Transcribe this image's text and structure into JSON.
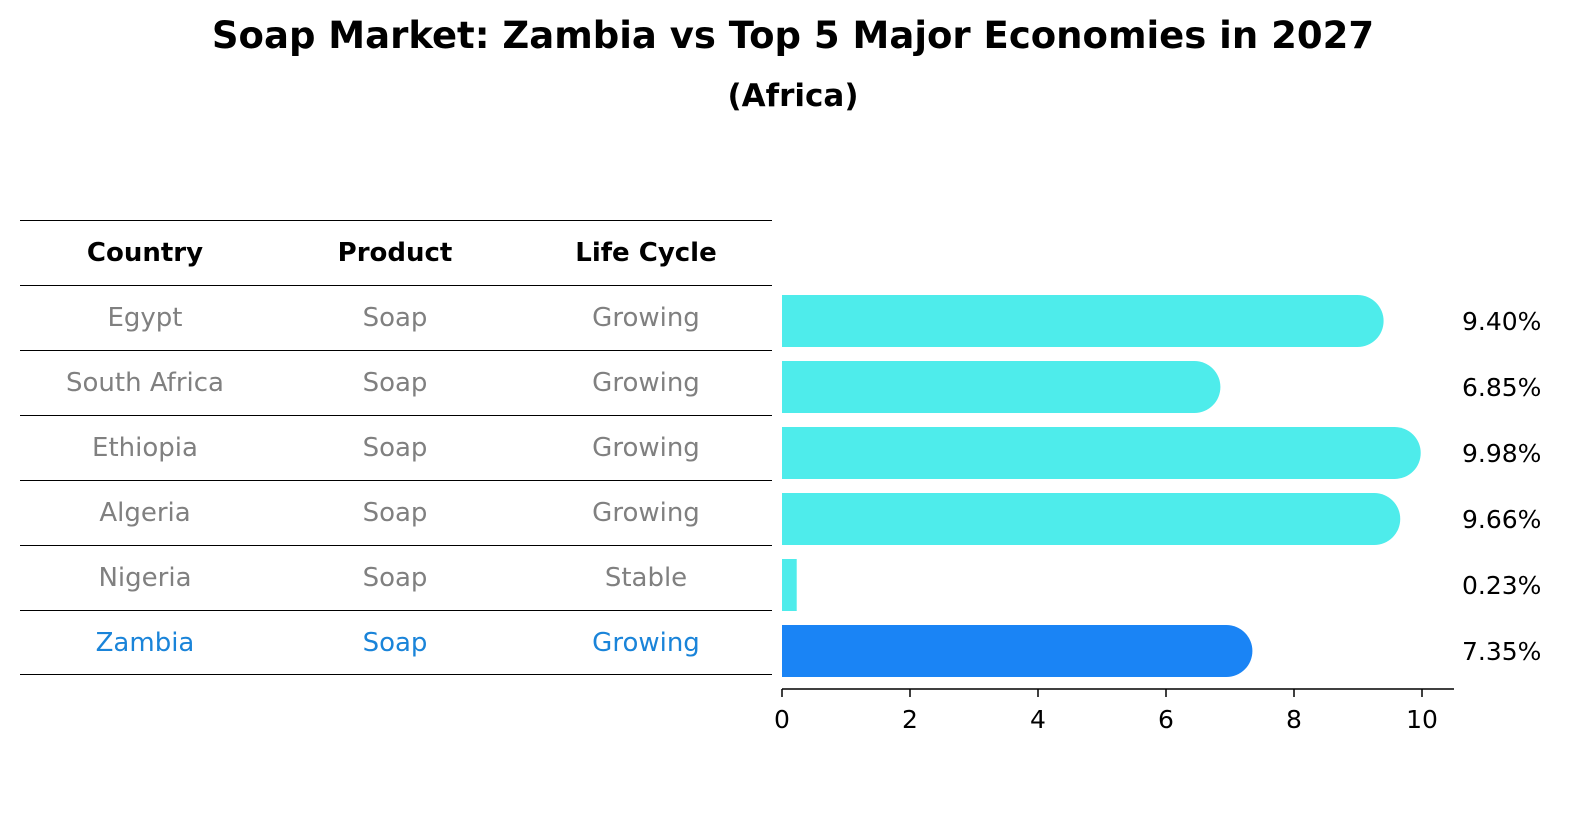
{
  "header": {
    "title": "Soap Market: Zambia vs Top 5 Major Economies in 2027",
    "subtitle": "(Africa)"
  },
  "table": {
    "columns": [
      "Country",
      "Product",
      "Life Cycle"
    ],
    "rows": [
      {
        "country": "Egypt",
        "product": "Soap",
        "life_cycle": "Growing"
      },
      {
        "country": "South Africa",
        "product": "Soap",
        "life_cycle": "Growing"
      },
      {
        "country": "Ethiopia",
        "product": "Soap",
        "life_cycle": "Growing"
      },
      {
        "country": "Algeria",
        "product": "Soap",
        "life_cycle": "Growing"
      },
      {
        "country": "Nigeria",
        "product": "Soap",
        "life_cycle": "Stable"
      },
      {
        "country": "Zambia",
        "product": "Soap",
        "life_cycle": "Growing"
      }
    ]
  },
  "colors": {
    "bar": "#4eeceb",
    "highlight_bar": "#1a84f5",
    "highlight_text": "#1a84d9",
    "muted_text": "#808080"
  },
  "chart_data": {
    "type": "bar",
    "orientation": "horizontal",
    "categories": [
      "Egypt",
      "South Africa",
      "Ethiopia",
      "Algeria",
      "Nigeria",
      "Zambia"
    ],
    "values": [
      9.4,
      6.85,
      9.98,
      9.66,
      0.23,
      7.35
    ],
    "value_labels": [
      "9.40%",
      "6.85%",
      "9.98%",
      "9.66%",
      "0.23%",
      "7.35%"
    ],
    "highlight": "Zambia",
    "xlim": [
      0,
      10.5
    ],
    "xticks": [
      0,
      2,
      4,
      6,
      8,
      10
    ],
    "xlabel": "",
    "ylabel": ""
  }
}
